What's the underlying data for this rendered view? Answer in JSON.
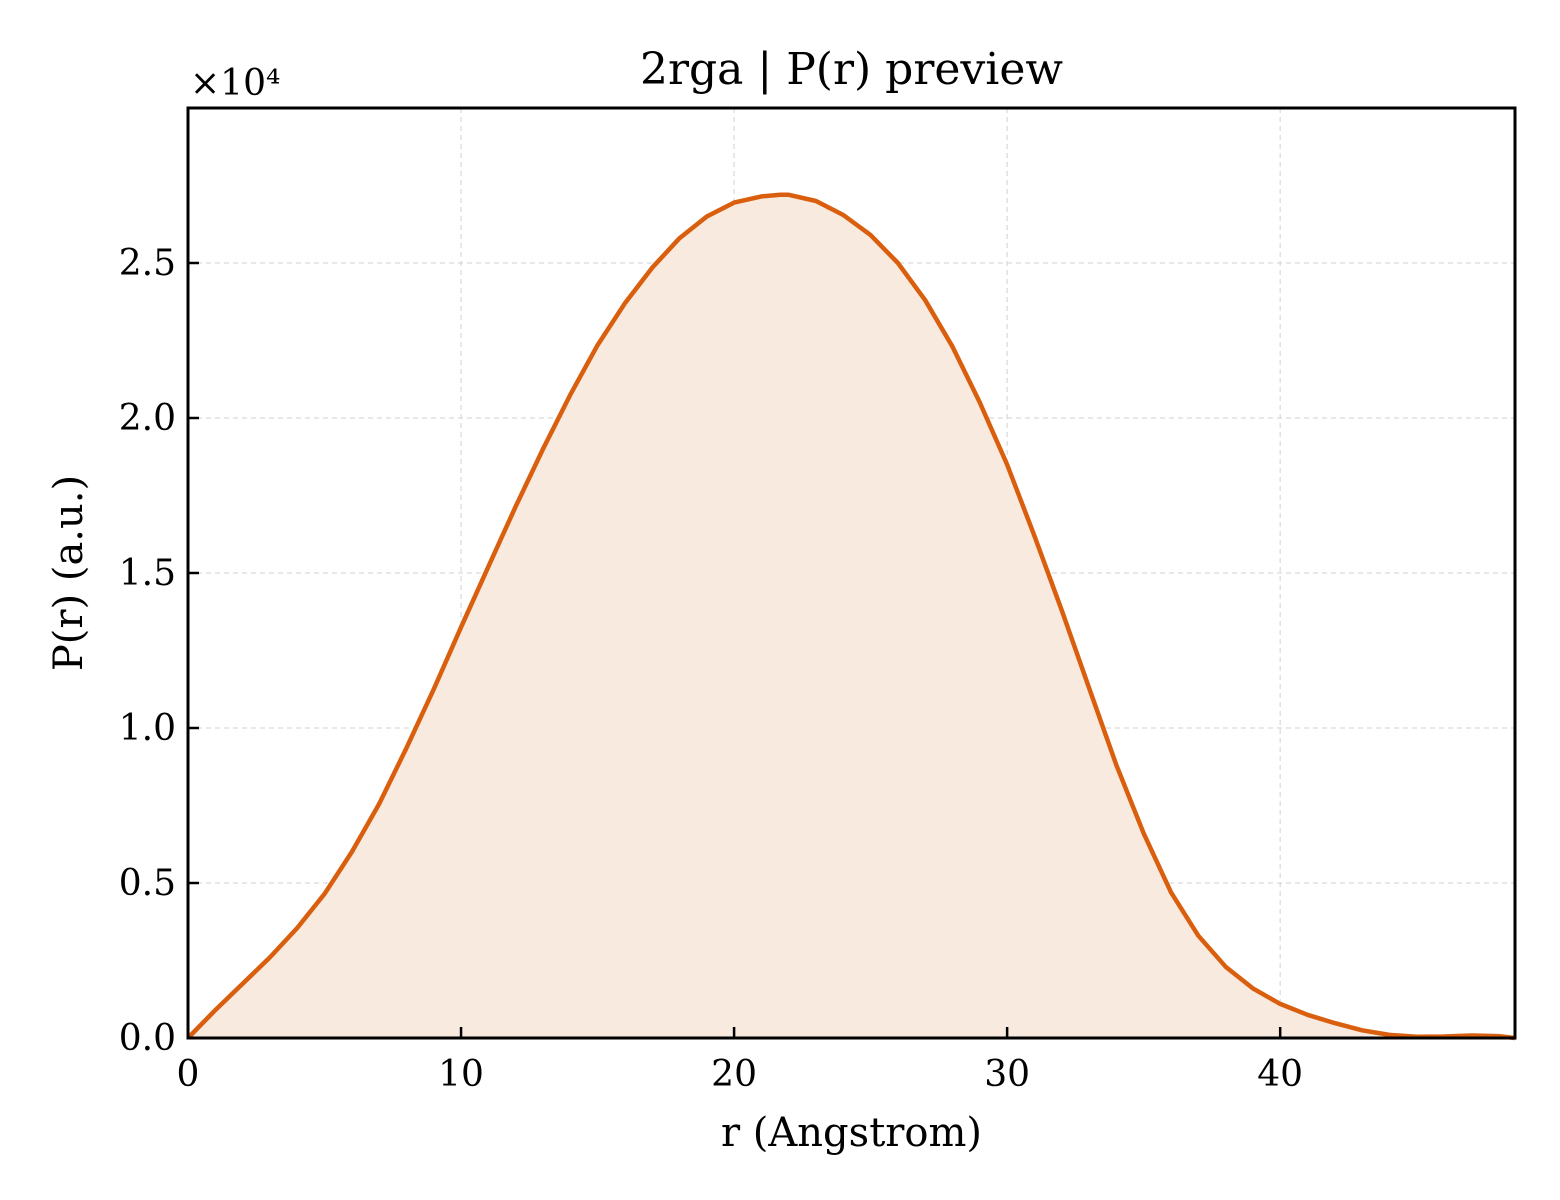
{
  "chart_data": {
    "type": "area",
    "title": "2rga | P(r) preview",
    "xlabel": "r (Angstrom)",
    "ylabel": "P(r) (a.u.)",
    "y_multiplier": "×10⁴",
    "xlim": [
      0,
      48.6
    ],
    "ylim": [
      0,
      3.0
    ],
    "x_ticks": [
      0,
      10,
      20,
      30,
      40
    ],
    "y_ticks": [
      0.0,
      0.5,
      1.0,
      1.5,
      2.0,
      2.5
    ],
    "x_tick_labels": [
      "0",
      "10",
      "20",
      "30",
      "40"
    ],
    "y_tick_labels": [
      "0.0",
      "0.5",
      "1.0",
      "1.5",
      "2.0",
      "2.5"
    ],
    "grid": true,
    "colors": {
      "line": "#d95f0e",
      "fill": "#f8eadf"
    },
    "series": [
      {
        "x": [
          0,
          1,
          2,
          3,
          4,
          5,
          6,
          7,
          8,
          9,
          10,
          11,
          12,
          13,
          14,
          15,
          16,
          17,
          18,
          19,
          20,
          21,
          21.7,
          22,
          23,
          24,
          25,
          26,
          27,
          28,
          29,
          30,
          31,
          32,
          33,
          34,
          35,
          36,
          37,
          38,
          39,
          40,
          41,
          42,
          43,
          44,
          45,
          46,
          47,
          48,
          48.6
        ],
        "y": [
          0.0,
          0.09,
          0.175,
          0.26,
          0.355,
          0.465,
          0.6,
          0.755,
          0.935,
          1.125,
          1.325,
          1.52,
          1.715,
          1.9,
          2.075,
          2.235,
          2.37,
          2.485,
          2.58,
          2.65,
          2.695,
          2.715,
          2.72,
          2.72,
          2.7,
          2.655,
          2.59,
          2.5,
          2.38,
          2.23,
          2.05,
          1.85,
          1.62,
          1.38,
          1.13,
          0.88,
          0.66,
          0.47,
          0.33,
          0.23,
          0.16,
          0.11,
          0.075,
          0.048,
          0.025,
          0.01,
          0.004,
          0.005,
          0.008,
          0.006,
          0.0
        ]
      }
    ]
  }
}
